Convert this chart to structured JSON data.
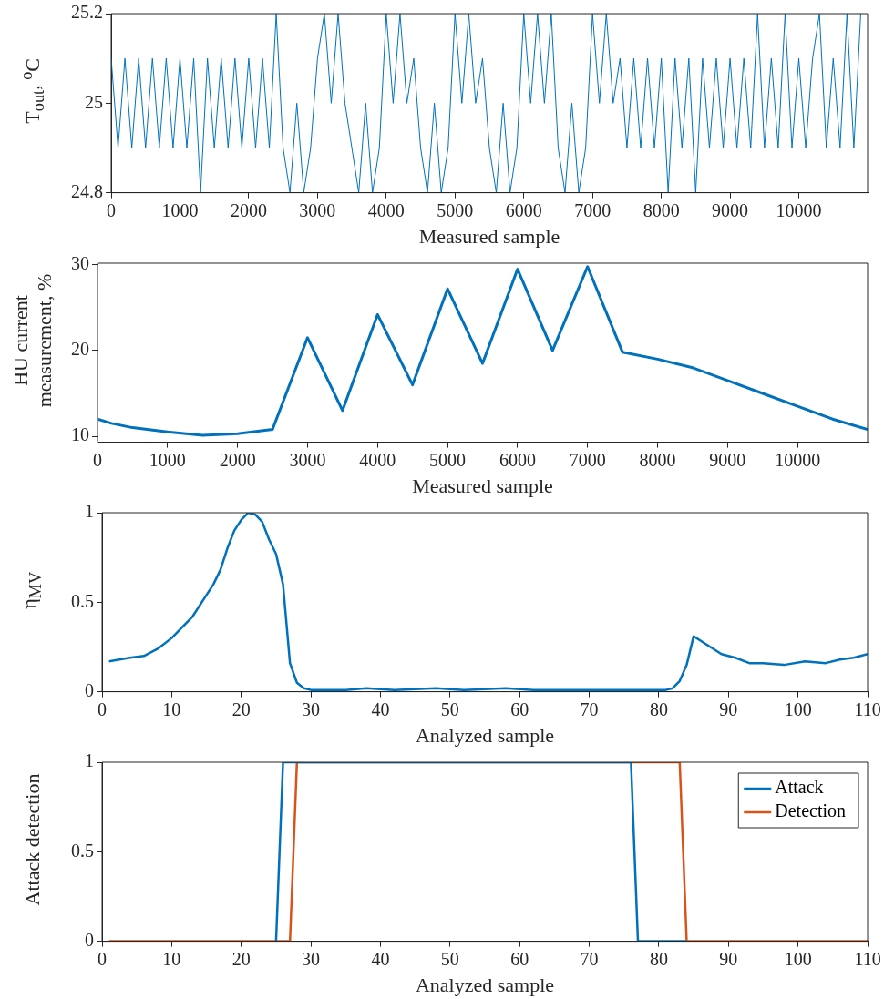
{
  "chart_data": [
    {
      "type": "line",
      "xlabel": "Measured sample",
      "ylabel": "T$_{out}$, $^{o}$C",
      "xlim": [
        0,
        11000
      ],
      "xticks": [
        0,
        1000,
        2000,
        3000,
        4000,
        5000,
        6000,
        7000,
        8000,
        9000,
        10000
      ],
      "ylim": [
        24.8,
        25.2
      ],
      "yticks": [
        24.8,
        25,
        25.2
      ],
      "x": [
        0,
        100,
        200,
        300,
        400,
        500,
        600,
        700,
        800,
        900,
        1000,
        1100,
        1200,
        1300,
        1400,
        1500,
        1600,
        1700,
        1800,
        1900,
        2000,
        2100,
        2200,
        2300,
        2400,
        2500,
        2600,
        2700,
        2800,
        2900,
        3000,
        3100,
        3200,
        3300,
        3400,
        3500,
        3600,
        3700,
        3800,
        3900,
        4000,
        4100,
        4200,
        4300,
        4400,
        4500,
        4600,
        4700,
        4800,
        4900,
        5000,
        5100,
        5200,
        5300,
        5400,
        5500,
        5600,
        5700,
        5800,
        5900,
        6000,
        6100,
        6200,
        6300,
        6400,
        6500,
        6600,
        6700,
        6800,
        6900,
        7000,
        7100,
        7200,
        7300,
        7400,
        7500,
        7600,
        7700,
        7800,
        7900,
        8000,
        8100,
        8200,
        8300,
        8400,
        8500,
        8600,
        8700,
        8800,
        8900,
        9000,
        9100,
        9200,
        9300,
        9400,
        9500,
        9600,
        9700,
        9800,
        9900,
        10000,
        10100,
        10200,
        10300,
        10400,
        10500,
        10600,
        10700,
        10800,
        10900
      ],
      "series": [
        {
          "color": "#0072bd",
          "values": [
            25.1,
            24.9,
            25.1,
            24.9,
            25.1,
            24.9,
            25.1,
            24.9,
            25.1,
            24.9,
            25.1,
            24.9,
            25.1,
            24.8,
            25.1,
            24.9,
            25.1,
            24.9,
            25.1,
            24.9,
            25.1,
            24.9,
            25.1,
            24.9,
            25.2,
            24.9,
            24.8,
            25.0,
            24.8,
            24.9,
            25.1,
            25.2,
            25.0,
            25.2,
            25.0,
            24.9,
            24.8,
            25.0,
            24.8,
            24.9,
            25.2,
            25.0,
            25.2,
            25.0,
            25.1,
            24.9,
            24.8,
            25.0,
            24.8,
            24.9,
            25.2,
            25.0,
            25.2,
            25.0,
            25.1,
            24.9,
            24.8,
            25.0,
            24.8,
            24.9,
            25.2,
            25.0,
            25.2,
            25.0,
            25.2,
            24.9,
            24.8,
            25.0,
            24.8,
            24.9,
            25.2,
            25.0,
            25.2,
            25.0,
            25.1,
            24.9,
            25.1,
            24.9,
            25.1,
            24.9,
            25.1,
            24.8,
            25.1,
            24.9,
            25.1,
            24.8,
            25.1,
            24.9,
            25.1,
            24.9,
            25.1,
            24.9,
            25.1,
            24.9,
            25.2,
            24.9,
            25.1,
            24.9,
            25.2,
            24.9,
            25.1,
            24.9,
            25.1,
            25.2,
            24.9,
            25.1,
            24.9,
            25.2,
            24.9,
            25.2
          ]
        }
      ]
    },
    {
      "type": "line",
      "xlabel": "Measured sample",
      "ylabel": "HU current measurement, %",
      "xlim": [
        0,
        11000
      ],
      "xticks": [
        0,
        1000,
        2000,
        3000,
        4000,
        5000,
        6000,
        7000,
        8000,
        9000,
        10000
      ],
      "ylim": [
        9.3,
        30.2
      ],
      "yticks": [
        10,
        20,
        30
      ],
      "x": [
        0,
        200,
        500,
        1000,
        1500,
        2000,
        2500,
        3000,
        3500,
        4000,
        4500,
        5000,
        5500,
        6000,
        6500,
        7000,
        7500,
        8000,
        8500,
        9000,
        9500,
        10000,
        10500,
        11000
      ],
      "series": [
        {
          "color": "#0072bd",
          "values": [
            12,
            11.5,
            11,
            10.5,
            10.1,
            10.3,
            10.8,
            21.5,
            13,
            24.2,
            16,
            27.2,
            18.5,
            29.5,
            20,
            29.8,
            19.8,
            19,
            18,
            16.5,
            15,
            13.5,
            12,
            10.8
          ]
        }
      ]
    },
    {
      "type": "line",
      "xlabel": "Analyzed sample",
      "ylabel": "η$_{MV}$",
      "xlim": [
        0,
        110
      ],
      "xticks": [
        0,
        10,
        20,
        30,
        40,
        50,
        60,
        70,
        80,
        90,
        100,
        110
      ],
      "ylim": [
        0,
        1
      ],
      "yticks": [
        0,
        0.5,
        1
      ],
      "x": [
        1,
        4,
        6,
        8,
        10,
        13,
        16,
        17,
        18,
        19,
        20,
        21,
        22,
        23,
        24,
        25,
        26,
        27,
        28,
        29,
        30,
        35,
        38,
        42,
        48,
        52,
        58,
        62,
        70,
        78,
        81,
        82,
        83,
        84,
        85,
        87,
        89,
        91,
        93,
        95,
        98,
        101,
        104,
        106,
        108,
        110
      ],
      "series": [
        {
          "color": "#0072bd",
          "values": [
            0.17,
            0.19,
            0.2,
            0.24,
            0.3,
            0.42,
            0.6,
            0.68,
            0.8,
            0.9,
            0.96,
            1.0,
            0.99,
            0.95,
            0.85,
            0.77,
            0.6,
            0.16,
            0.05,
            0.02,
            0.01,
            0.01,
            0.02,
            0.01,
            0.02,
            0.01,
            0.02,
            0.01,
            0.01,
            0.01,
            0.01,
            0.02,
            0.06,
            0.15,
            0.31,
            0.26,
            0.21,
            0.19,
            0.16,
            0.16,
            0.15,
            0.17,
            0.16,
            0.18,
            0.19,
            0.21
          ]
        }
      ]
    },
    {
      "type": "line",
      "xlabel": "Analyzed sample",
      "ylabel": "Attack detection",
      "xlim": [
        0,
        110
      ],
      "xticks": [
        0,
        10,
        20,
        30,
        40,
        50,
        60,
        70,
        80,
        90,
        100,
        110
      ],
      "ylim": [
        0,
        1
      ],
      "yticks": [
        0,
        0.5,
        1
      ],
      "legend": "top right",
      "series": [
        {
          "name": "Attack",
          "color": "#0072bd",
          "x": [
            25,
            26,
            76,
            77,
            84
          ],
          "values": [
            0,
            1,
            1,
            0,
            0
          ]
        },
        {
          "name": "Detection",
          "color": "#d95319",
          "x": [
            1,
            27,
            28,
            83,
            84,
            110
          ],
          "values": [
            0,
            0,
            1,
            1,
            0,
            0
          ]
        }
      ]
    }
  ]
}
